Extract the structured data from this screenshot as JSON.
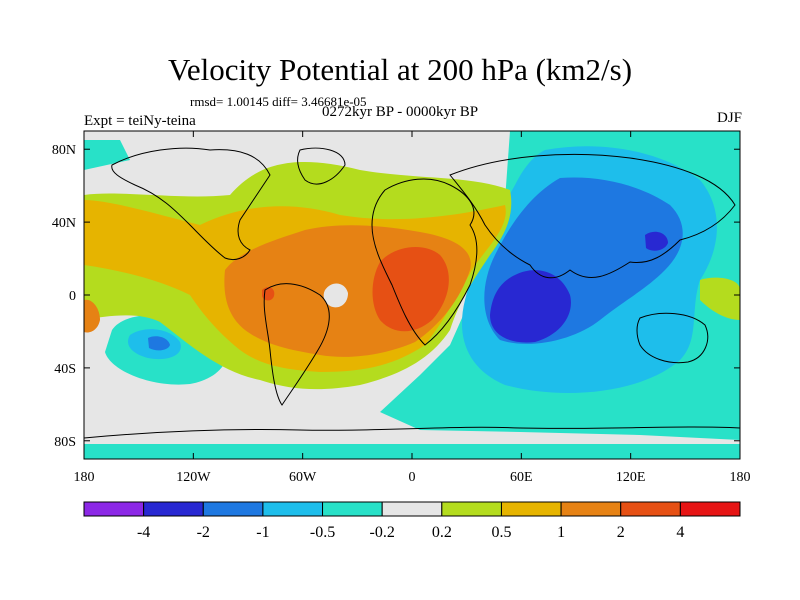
{
  "title": "Velocity Potential at 200 hPa (km2/s)",
  "stats": "rmsd= 1.00145 diff= 3.46681e-05",
  "subtitle": "0272kyr BP - 0000kyr BP",
  "experiment": "Expt = teiNy-teina",
  "season": "DJF",
  "map": {
    "lon_range": [
      -180,
      180
    ],
    "lat_range": [
      -90,
      90
    ],
    "x_ticks": [
      {
        "lon": -180,
        "label": "180"
      },
      {
        "lon": -120,
        "label": "120W"
      },
      {
        "lon": -60,
        "label": "60W"
      },
      {
        "lon": 0,
        "label": "0"
      },
      {
        "lon": 60,
        "label": "60E"
      },
      {
        "lon": 120,
        "label": "120E"
      },
      {
        "lon": 180,
        "label": "180"
      }
    ],
    "y_ticks": [
      {
        "lat": 80,
        "label": "80N"
      },
      {
        "lat": 40,
        "label": "40N"
      },
      {
        "lat": 0,
        "label": "0"
      },
      {
        "lat": -40,
        "label": "40S"
      },
      {
        "lat": -80,
        "label": "80S"
      }
    ]
  },
  "colorbar": {
    "colors": [
      "#8c28e6",
      "#2828d2",
      "#1e78e1",
      "#1ebeeb",
      "#28e1c8",
      "#e6e6e6",
      "#b4dc1e",
      "#e6b400",
      "#e68214",
      "#e65014",
      "#e61414"
    ],
    "labels": [
      "-4",
      "-2",
      "-1",
      "-0.5",
      "-0.2",
      "0.2",
      "0.5",
      "1",
      "2",
      "4"
    ]
  }
}
